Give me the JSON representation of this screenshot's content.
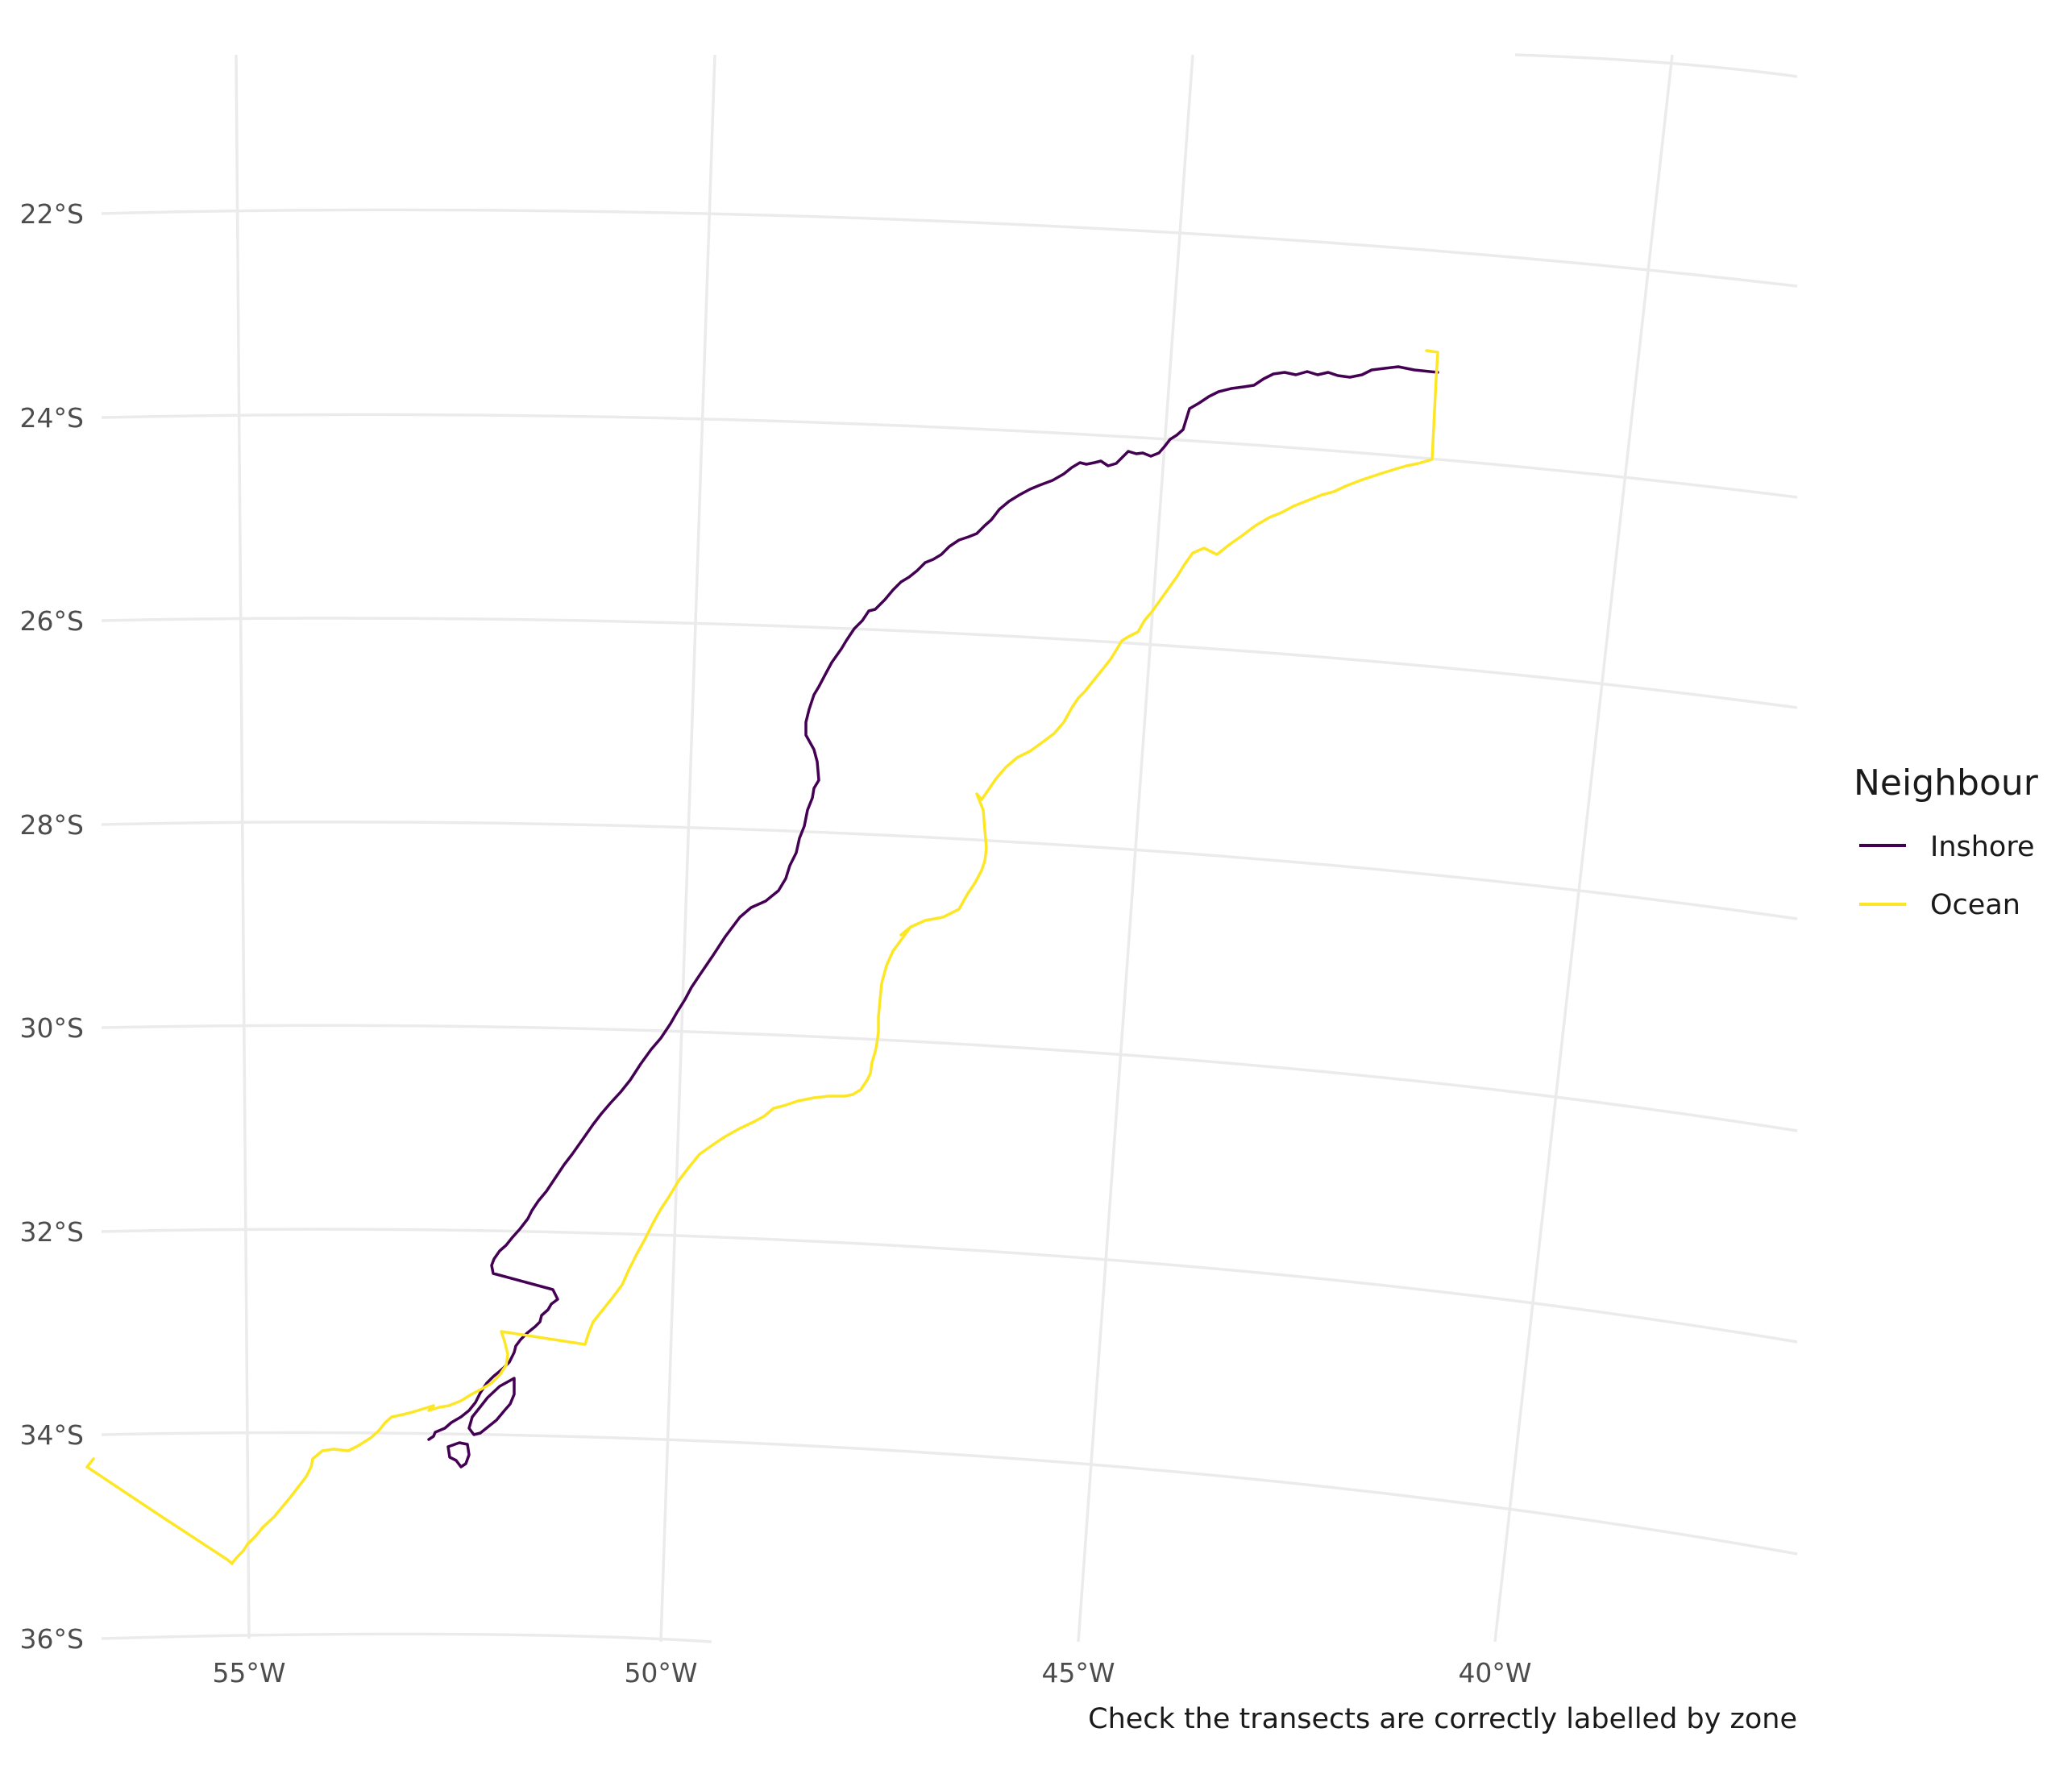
{
  "map": {
    "caption": "Check the transects are correctly labelled by zone",
    "lat_labels": [
      "22°S",
      "24°S",
      "26°S",
      "28°S",
      "30°S",
      "32°S",
      "34°S",
      "36°S"
    ],
    "lon_labels": [
      "55°W",
      "50°W",
      "45°W",
      "40°W"
    ],
    "legend": {
      "title": "Neighbour",
      "items": [
        {
          "label": "Inshore",
          "color": "#440154"
        },
        {
          "label": "Ocean",
          "color": "#fde725"
        }
      ]
    },
    "colors": {
      "graticule": "#ebebeb",
      "inshore": "#440154",
      "ocean": "#fde725"
    }
  }
}
